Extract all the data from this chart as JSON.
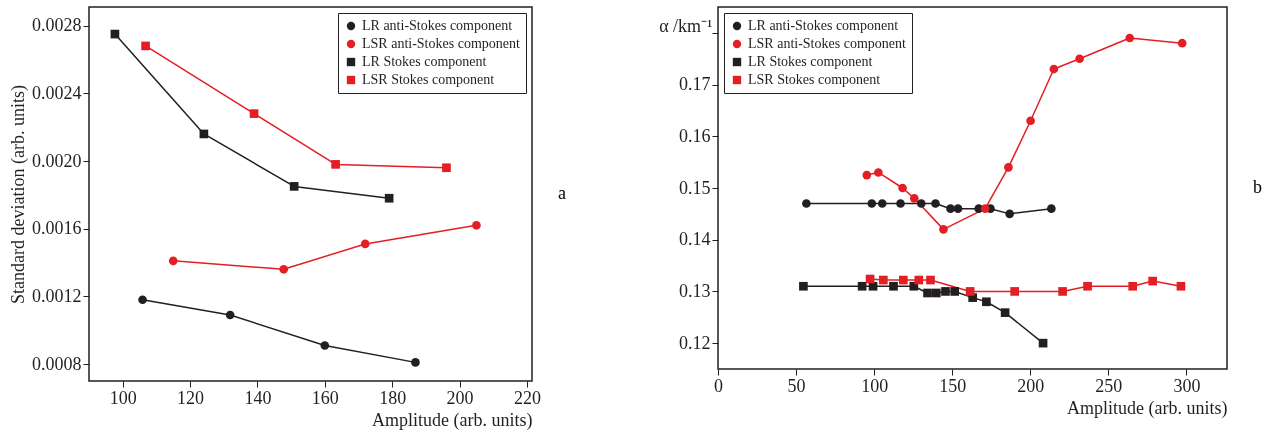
{
  "chart_data": [
    {
      "type": "line",
      "xlabel": "Amplitude (arb. units)",
      "ylabel": "Standard deviation (arb. units)",
      "annotations": [
        "a"
      ],
      "xlim": [
        90,
        221.5
      ],
      "xticks": [
        100,
        120,
        140,
        160,
        180,
        200,
        220
      ],
      "ylim": [
        0.0007,
        0.00291
      ],
      "yticks": [
        0.0008,
        0.0012,
        0.0016,
        {
          "value": 0.002,
          "label": "0.0020"
        },
        0.0024,
        0.0028
      ],
      "legend": "top right",
      "grid": false,
      "series": [
        {
          "name": "LR anti-Stokes component",
          "color": "#231f20",
          "marker": "circle",
          "x": [
            105.9,
            131.9,
            160,
            186.9
          ],
          "values": [
            0.00118,
            0.00109,
            0.00091,
            0.00081
          ]
        },
        {
          "name": "LSR anti-Stokes component",
          "color": "#e31e24",
          "marker": "circle",
          "x": [
            115,
            147.8,
            172,
            205
          ],
          "values": [
            0.00141,
            0.00136,
            0.00151,
            0.00162
          ]
        },
        {
          "name": "LR Stokes component",
          "color": "#231f20",
          "marker": "square",
          "x": [
            97.7,
            124.1,
            150.9,
            179.1
          ],
          "values": [
            0.00275,
            0.00216,
            0.00185,
            0.00178
          ]
        },
        {
          "name": "LSR Stokes component",
          "color": "#e31e24",
          "marker": "square",
          "x": [
            106.8,
            139,
            163.2,
            196.1
          ],
          "values": [
            0.00268,
            0.00228,
            0.00198,
            0.00196
          ]
        }
      ]
    },
    {
      "type": "line",
      "xlabel": "Amplitude (arb. units)",
      "ylabel": "α /km⁻¹",
      "annotations": [
        "b"
      ],
      "xlim": [
        0,
        326
      ],
      "xticks": [
        0,
        50,
        100,
        150,
        200,
        250,
        300
      ],
      "ylim": [
        0.115,
        0.185
      ],
      "yticks": [
        0.12,
        0.13,
        0.14,
        0.15,
        0.16,
        0.17,
        {
          "value": 0.18,
          "label": null
        }
      ],
      "legend": "top left",
      "grid": false,
      "series": [
        {
          "name": "LR anti-Stokes component",
          "color": "#231f20",
          "marker": "circle",
          "x": [
            56.6,
            98.5,
            105.2,
            116.9,
            130.2,
            139.3,
            148.9,
            153.7,
            167,
            174.5,
            186.8,
            213.5
          ],
          "values": [
            0.147,
            0.147,
            0.147,
            0.147,
            0.147,
            0.147,
            0.146,
            0.146,
            0.146,
            0.146,
            0.145,
            0.146
          ]
        },
        {
          "name": "LSR anti-Stokes component",
          "color": "#e31e24",
          "marker": "circle",
          "x": [
            95.3,
            102.7,
            118.2,
            125.7,
            144.4,
            171.1,
            186,
            200.2,
            215.1,
            231.6,
            263.7,
            297.3
          ],
          "values": [
            0.1525,
            0.153,
            0.15,
            0.148,
            0.142,
            0.146,
            0.154,
            0.163,
            0.173,
            0.175,
            0.179,
            0.178
          ]
        },
        {
          "name": "LR Stokes component",
          "color": "#231f20",
          "marker": "square",
          "x": [
            54.7,
            92.3,
            99.3,
            112.4,
            125.4,
            134.2,
            139.8,
            145.7,
            151.6,
            163.1,
            171.9,
            183.9,
            208.2
          ],
          "values": [
            0.131,
            0.131,
            0.131,
            0.131,
            0.131,
            0.1297,
            0.1297,
            0.13,
            0.13,
            0.1288,
            0.128,
            0.1259,
            0.12
          ]
        },
        {
          "name": "LSR Stokes component",
          "color": "#e31e24",
          "marker": "square",
          "x": [
            97.4,
            105.9,
            118.7,
            128.6,
            136.1,
            161.5,
            190,
            220.7,
            236.7,
            265.6,
            278.4,
            296.5
          ],
          "values": [
            0.1324,
            0.1322,
            0.1322,
            0.1322,
            0.1322,
            0.13,
            0.13,
            0.13,
            0.131,
            0.131,
            0.132,
            0.131
          ]
        }
      ]
    }
  ]
}
